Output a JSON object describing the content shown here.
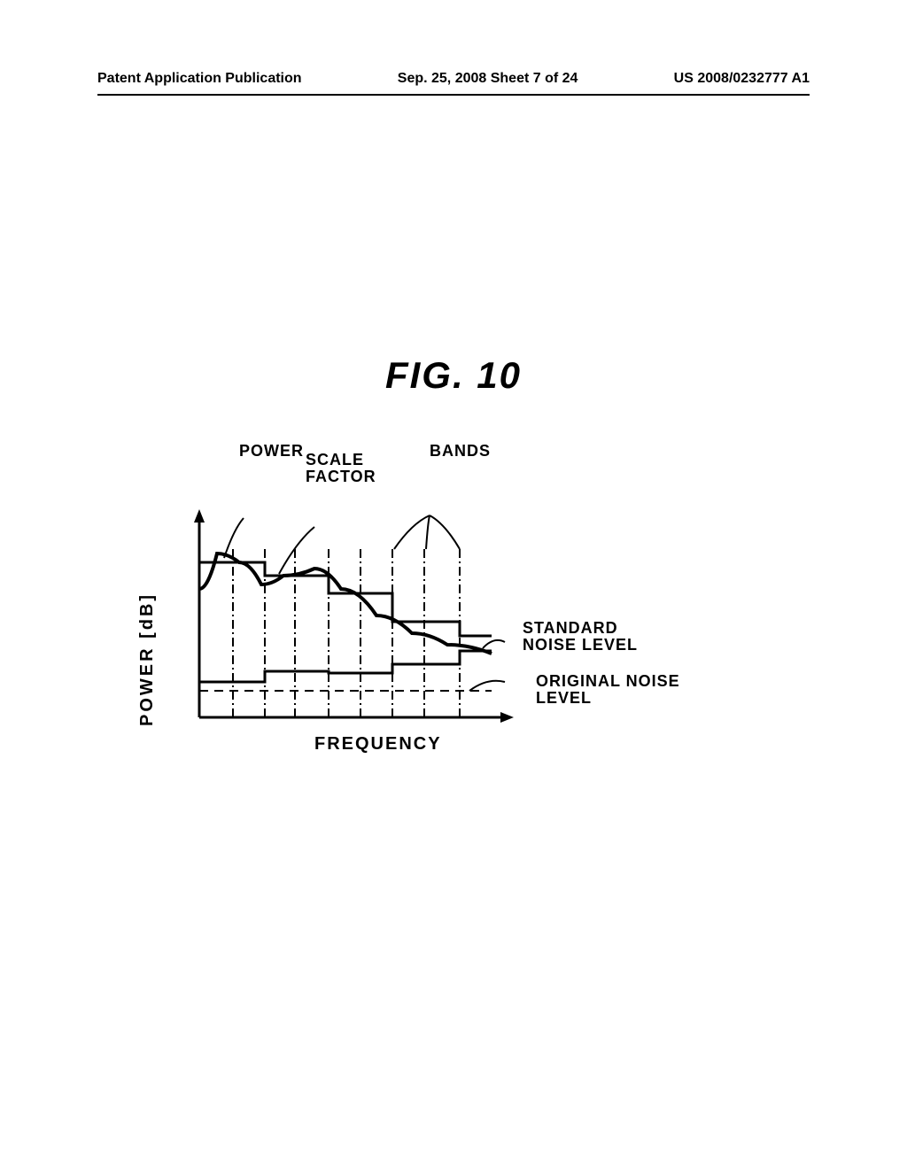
{
  "header": {
    "left": "Patent Application Publication",
    "middle": "Sep. 25, 2008  Sheet 7 of 24",
    "right": "US 2008/0232777 A1"
  },
  "figure": {
    "title": "FIG.  10",
    "y_axis_label": "POWER [dB]",
    "x_axis_label": "FREQUENCY",
    "labels": {
      "power": "POWER",
      "scale_factor": "SCALE\nFACTOR",
      "bands": "BANDS",
      "standard_noise": "STANDARD\nNOISE LEVEL",
      "original_noise": "ORIGINAL NOISE\nLEVEL"
    },
    "chart": {
      "type": "power-vs-frequency",
      "axis_color": "#000000",
      "stroke_width": 3,
      "x_range": [
        0,
        330
      ],
      "y_range": [
        0,
        210
      ],
      "band_boundaries_x": [
        0,
        38,
        74,
        108,
        146,
        182,
        218,
        254,
        294,
        330
      ],
      "scale_factor_steps_y": [
        175,
        175,
        160,
        160,
        140,
        140,
        108,
        108,
        92
      ],
      "noise_steps_y": [
        40,
        40,
        52,
        52,
        50,
        50,
        60,
        60,
        75
      ],
      "original_noise_y": 30,
      "power_curve": [
        {
          "x": 0,
          "y": 145
        },
        {
          "x": 20,
          "y": 185
        },
        {
          "x": 45,
          "y": 175
        },
        {
          "x": 70,
          "y": 150
        },
        {
          "x": 95,
          "y": 160
        },
        {
          "x": 130,
          "y": 168
        },
        {
          "x": 160,
          "y": 145
        },
        {
          "x": 200,
          "y": 115
        },
        {
          "x": 240,
          "y": 95
        },
        {
          "x": 280,
          "y": 82
        },
        {
          "x": 330,
          "y": 72
        }
      ],
      "leaders": {
        "power": {
          "from": [
            50,
            225
          ],
          "to": [
            28,
            180
          ]
        },
        "scale_factor": {
          "from": [
            130,
            215
          ],
          "to": [
            90,
            162
          ]
        },
        "bands_a": {
          "from": [
            260,
            228
          ],
          "to": [
            220,
            190
          ]
        },
        "bands_b": {
          "from": [
            260,
            228
          ],
          "to": [
            256,
            190
          ]
        },
        "bands_c": {
          "from": [
            260,
            228
          ],
          "to": [
            294,
            190
          ]
        },
        "std_noise": {
          "from": [
            345,
            85
          ],
          "to": [
            320,
            78
          ]
        },
        "orig_noise": {
          "from": [
            345,
            40
          ],
          "to": [
            305,
            30
          ]
        }
      }
    }
  }
}
